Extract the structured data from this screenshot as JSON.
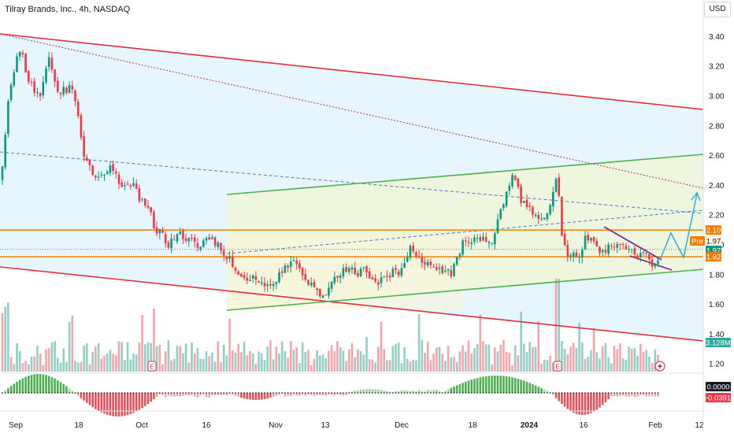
{
  "header": {
    "title": "Tilray Brands, Inc., 4h, NASDAQ",
    "currency": "USD"
  },
  "chart_data": {
    "type": "candlestick",
    "title": "Tilray Brands, Inc., 4h, NASDAQ",
    "price_axis": {
      "ticks": [
        "3.40",
        "3.20",
        "3.00",
        "2.80",
        "2.60",
        "2.40",
        "2.20",
        "2.00",
        "1.80",
        "1.60",
        "1.40",
        "1.20"
      ],
      "ylim": [
        1.14,
        3.47
      ]
    },
    "time_axis": {
      "ticks": [
        "Sep",
        "18",
        "Oct",
        "16",
        "Nov",
        "13",
        "Dec",
        "18",
        "2024",
        "16",
        "Feb",
        "12"
      ]
    },
    "price_badges": [
      {
        "label": "2.10",
        "value": 2.1,
        "color": "#f57c00",
        "text_color": "#ffffff"
      },
      {
        "label": "Pre",
        "value": 1.97,
        "color": "#f57c00",
        "text_color": "#ffffff"
      },
      {
        "label": "1.97",
        "value": 1.97,
        "color": "#fff3e0",
        "text_color": "#131722"
      },
      {
        "label": "1.97",
        "value": 1.97,
        "color": "#089981",
        "text_color": "#ffffff"
      },
      {
        "label": "1.92",
        "value": 1.92,
        "color": "#f57c00",
        "text_color": "#ffffff"
      }
    ],
    "volume": {
      "last_label": "3.128M"
    },
    "oscillator": {
      "labels": [
        "0.0000",
        "-0.0391"
      ]
    },
    "horizontal_levels": [
      2.1,
      1.92
    ],
    "colors": {
      "up": "#089981",
      "down": "#f23645",
      "channel_red": "#e0303d",
      "channel_green": "#4caf50",
      "resistance": "#f57c00",
      "wedge": "#7b1fa2",
      "projection": "#26a8d6"
    },
    "events": [
      "E",
      "E",
      "E"
    ]
  }
}
